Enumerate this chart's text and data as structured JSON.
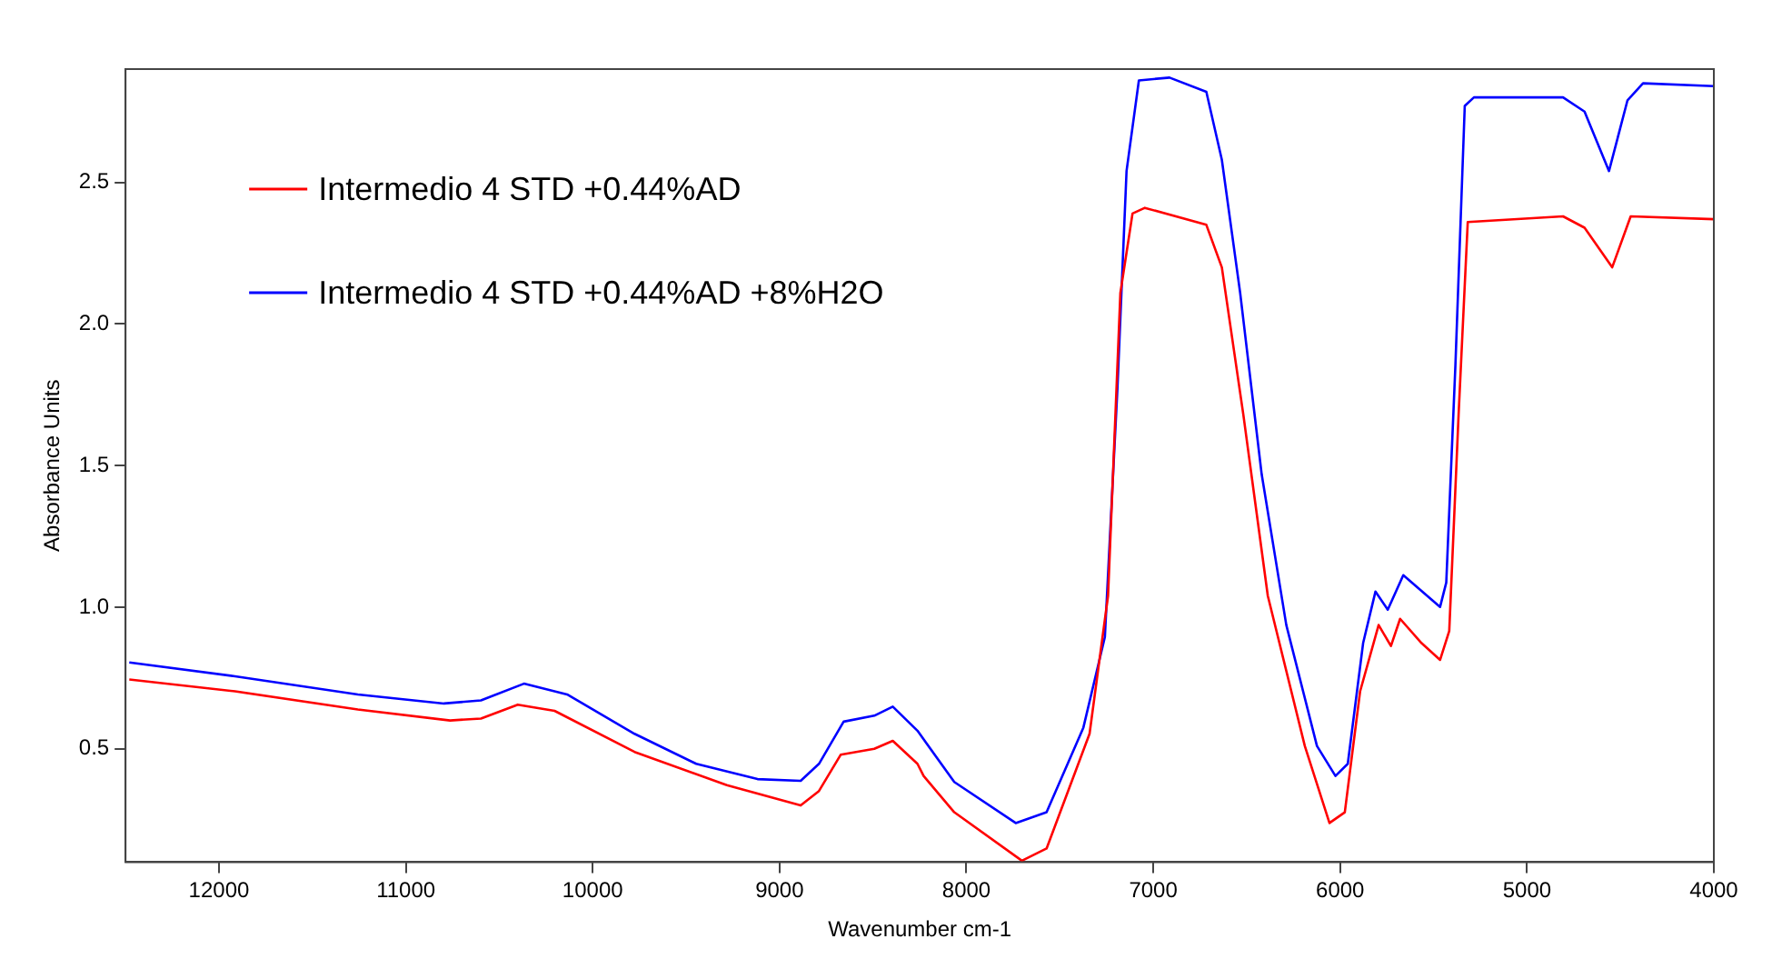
{
  "chart_data": {
    "type": "line",
    "xlabel": "Wavenumber cm-1",
    "ylabel": "Absorbance Units",
    "xlim": [
      12500,
      4000
    ],
    "ylim": [
      0.1,
      2.9
    ],
    "xticks": [
      12000,
      11000,
      10000,
      9000,
      8000,
      7000,
      6000,
      5000,
      4000
    ],
    "yticks": [
      0.5,
      {
        "value": 1,
        "label": "1.0"
      },
      1.5,
      {
        "value": 2,
        "label": "2.0"
      },
      2.5
    ],
    "grid": false,
    "legend": "top left",
    "marker": "none",
    "line_style": "solid",
    "series": [
      {
        "name": "Intermedio 4 STD +0.44%AD",
        "color": "#ff0000",
        "x": [
          12480,
          11914,
          11257,
          10763,
          10598,
          10401,
          10204,
          9776,
          9282,
          8887,
          8789,
          8673,
          8493,
          8394,
          8262,
          8229,
          8065,
          7703,
          7571,
          7341,
          7242,
          7176,
          7111,
          7045,
          6716,
          6633,
          6518,
          6387,
          6189,
          6057,
          5975,
          5893,
          5794,
          5728,
          5679,
          5564,
          5465,
          5416,
          5366,
          5317,
          4807,
          4692,
          4544,
          4445,
          4000
        ],
        "values": [
          0.745,
          0.703,
          0.639,
          0.6,
          0.607,
          0.656,
          0.634,
          0.489,
          0.372,
          0.3,
          0.351,
          0.479,
          0.5,
          0.528,
          0.447,
          0.404,
          0.276,
          0.105,
          0.148,
          0.553,
          1.04,
          2.11,
          2.39,
          2.41,
          2.35,
          2.2,
          1.68,
          1.04,
          0.51,
          0.238,
          0.276,
          0.703,
          0.937,
          0.863,
          0.959,
          0.873,
          0.814,
          0.916,
          1.68,
          2.36,
          2.38,
          2.34,
          2.2,
          2.38,
          2.37
        ]
      },
      {
        "name": "Intermedio 4 STD +0.44%AD +8%H2O",
        "color": "#0000ff",
        "x": [
          12480,
          11914,
          11257,
          10796,
          10598,
          10368,
          10137,
          9776,
          9446,
          9118,
          8887,
          8789,
          8657,
          8493,
          8394,
          8262,
          8065,
          7736,
          7571,
          7374,
          7259,
          7192,
          7143,
          7077,
          6913,
          6716,
          6633,
          6535,
          6420,
          6288,
          6124,
          6025,
          5959,
          5877,
          5811,
          5745,
          5662,
          5465,
          5432,
          5383,
          5333,
          5284,
          4807,
          4692,
          4561,
          4462,
          4379,
          4000
        ],
        "values": [
          0.805,
          0.756,
          0.692,
          0.66,
          0.671,
          0.73,
          0.692,
          0.553,
          0.447,
          0.393,
          0.387,
          0.447,
          0.596,
          0.617,
          0.649,
          0.564,
          0.383,
          0.238,
          0.276,
          0.575,
          0.895,
          1.77,
          2.54,
          2.86,
          2.87,
          2.82,
          2.58,
          2.11,
          1.47,
          0.937,
          0.51,
          0.404,
          0.447,
          0.873,
          1.055,
          0.991,
          1.113,
          1.001,
          1.087,
          1.855,
          2.77,
          2.8,
          2.8,
          2.75,
          2.54,
          2.79,
          2.85,
          2.84
        ]
      }
    ]
  }
}
